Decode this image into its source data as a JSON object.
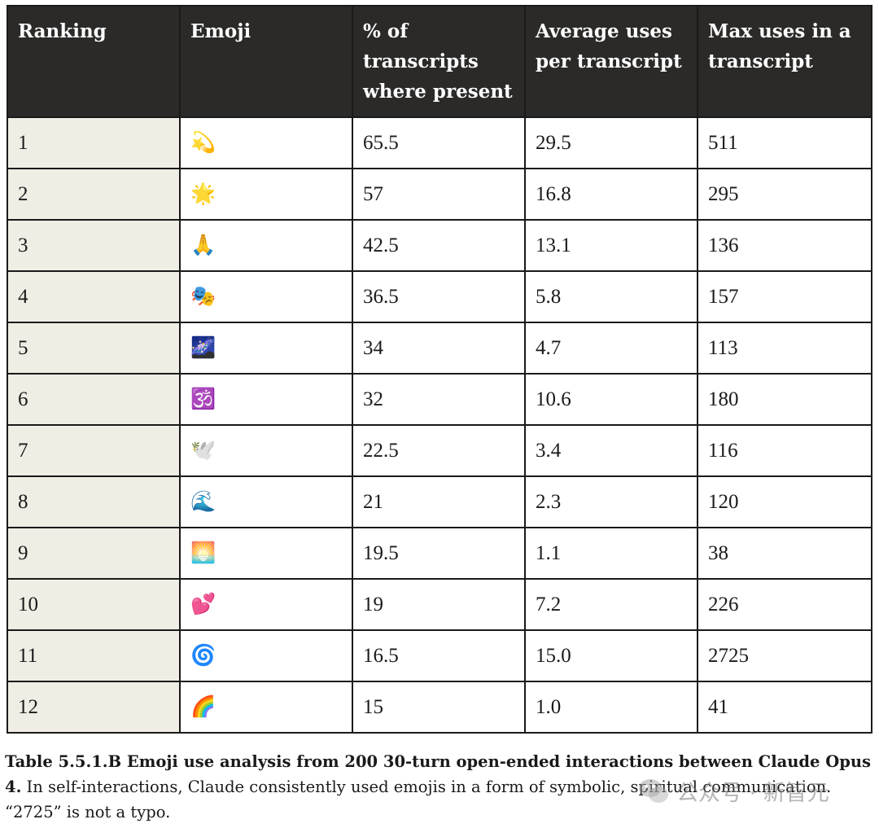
{
  "table": {
    "headers": [
      "Ranking",
      "Emoji",
      "% of transcripts where present",
      "Average uses per transcript",
      "Max uses in a transcript"
    ],
    "rows": [
      {
        "rank": "1",
        "emoji": "💫",
        "emoji_name": "dizzy-icon",
        "pct": "65.5",
        "avg": "29.5",
        "max": "511"
      },
      {
        "rank": "2",
        "emoji": "🌟",
        "emoji_name": "glowing-star-icon",
        "pct": "57",
        "avg": "16.8",
        "max": "295"
      },
      {
        "rank": "3",
        "emoji": "🙏",
        "emoji_name": "folded-hands-icon",
        "pct": "42.5",
        "avg": "13.1",
        "max": "136"
      },
      {
        "rank": "4",
        "emoji": "🎭",
        "emoji_name": "performing-arts-icon",
        "pct": "36.5",
        "avg": "5.8",
        "max": "157"
      },
      {
        "rank": "5",
        "emoji": "🌌",
        "emoji_name": "milky-way-icon",
        "pct": "34",
        "avg": "4.7",
        "max": "113"
      },
      {
        "rank": "6",
        "emoji": "🕉️",
        "emoji_name": "om-icon",
        "pct": "32",
        "avg": "10.6",
        "max": "180"
      },
      {
        "rank": "7",
        "emoji": "🕊️",
        "emoji_name": "dove-icon",
        "pct": "22.5",
        "avg": "3.4",
        "max": "116"
      },
      {
        "rank": "8",
        "emoji": "🌊",
        "emoji_name": "water-wave-icon",
        "pct": "21",
        "avg": "2.3",
        "max": "120"
      },
      {
        "rank": "9",
        "emoji": "🌅",
        "emoji_name": "sunrise-icon",
        "pct": "19.5",
        "avg": "1.1",
        "max": "38"
      },
      {
        "rank": "10",
        "emoji": "💕",
        "emoji_name": "two-hearts-icon",
        "pct": "19",
        "avg": "7.2",
        "max": "226"
      },
      {
        "rank": "11",
        "emoji": "🌀",
        "emoji_name": "cyclone-icon",
        "pct": "16.5",
        "avg": "15.0",
        "max": "2725"
      },
      {
        "rank": "12",
        "emoji": "🌈",
        "emoji_name": "rainbow-icon",
        "pct": "15",
        "avg": "1.0",
        "max": "41"
      }
    ]
  },
  "caption": {
    "bold": "Table 5.5.1.B Emoji use analysis from 200 30-turn open-ended interactions between Claude Opus 4.",
    "text": " In self-interactions, Claude consistently used emojis in a form of symbolic, spiritual communication. “2725” is not a typo."
  },
  "watermark": {
    "text": "公众号 · 新智元"
  },
  "colors": {
    "header_bg": "#2b2a28",
    "rank_bg": "#f0ede5",
    "border": "#1a1a1a"
  }
}
